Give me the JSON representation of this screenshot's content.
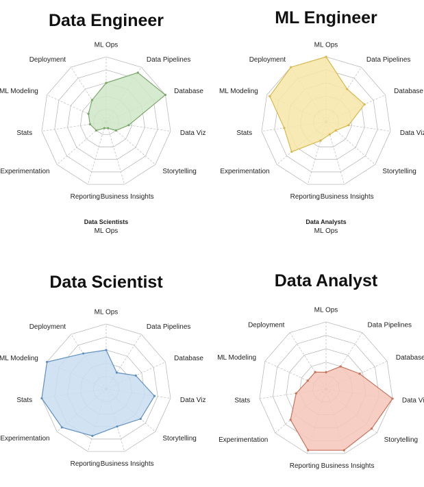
{
  "chart_data": [
    {
      "type": "radar",
      "title": "Data Engineer",
      "axes": [
        "ML Ops",
        "Data Pipelines",
        "Database",
        "Data Viz",
        "Storytelling",
        "Business Insights",
        "Reporting",
        "Experimentation",
        "Stats",
        "ML Modeling",
        "Deployment"
      ],
      "values": [
        0.6,
        0.9,
        1.0,
        0.35,
        0.2,
        0.1,
        0.1,
        0.2,
        0.25,
        0.3,
        0.4
      ],
      "range": [
        0,
        1
      ],
      "rings": 5,
      "color": "#cfe6c8",
      "stroke": "#7aa86a",
      "captions": [
        "Data Scientists",
        "ML Ops"
      ]
    },
    {
      "type": "radar",
      "title": "ML Engineer",
      "axes": [
        "ML Ops",
        "Data Pipelines",
        "Database",
        "Data Viz",
        "Storytelling",
        "Business Insights",
        "Reporting",
        "Experimentation",
        "Stats",
        "ML Modeling",
        "Deployment"
      ],
      "values": [
        1.0,
        0.6,
        0.65,
        0.35,
        0.2,
        0.2,
        0.3,
        0.7,
        0.65,
        0.95,
        1.0
      ],
      "range": [
        0,
        1
      ],
      "rings": 5,
      "color": "#f7e6a8",
      "stroke": "#d8b84c",
      "captions": [
        "Data Analysts",
        "ML Ops"
      ]
    },
    {
      "type": "radar",
      "title": "Data Scientist",
      "axes": [
        "ML Ops",
        "Data Pipelines",
        "Database",
        "Data Viz",
        "Storytelling",
        "Business Insights",
        "Reporting",
        "Experimentation",
        "Stats",
        "ML Modeling",
        "Deployment"
      ],
      "values": [
        0.6,
        0.3,
        0.5,
        0.75,
        0.7,
        0.6,
        0.75,
        0.9,
        1.0,
        1.0,
        0.65
      ],
      "range": [
        0,
        1
      ],
      "rings": 5,
      "color": "#c9ddf0",
      "stroke": "#5f8fc0",
      "captions": []
    },
    {
      "type": "radar",
      "title": "Data Analyst",
      "axes": [
        "ML Ops",
        "Data Pipelines",
        "Database",
        "Data Viz",
        "Storytelling",
        "Business Insights",
        "Reporting",
        "Experimentation",
        "Stats",
        "ML Modeling",
        "Deployment"
      ],
      "values": [
        0.25,
        0.4,
        0.55,
        1.0,
        0.9,
        0.95,
        0.95,
        0.7,
        0.45,
        0.3,
        0.3
      ],
      "range": [
        0,
        1
      ],
      "rings": 5,
      "color": "#f5c6b8",
      "stroke": "#c8725c",
      "captions": []
    }
  ]
}
